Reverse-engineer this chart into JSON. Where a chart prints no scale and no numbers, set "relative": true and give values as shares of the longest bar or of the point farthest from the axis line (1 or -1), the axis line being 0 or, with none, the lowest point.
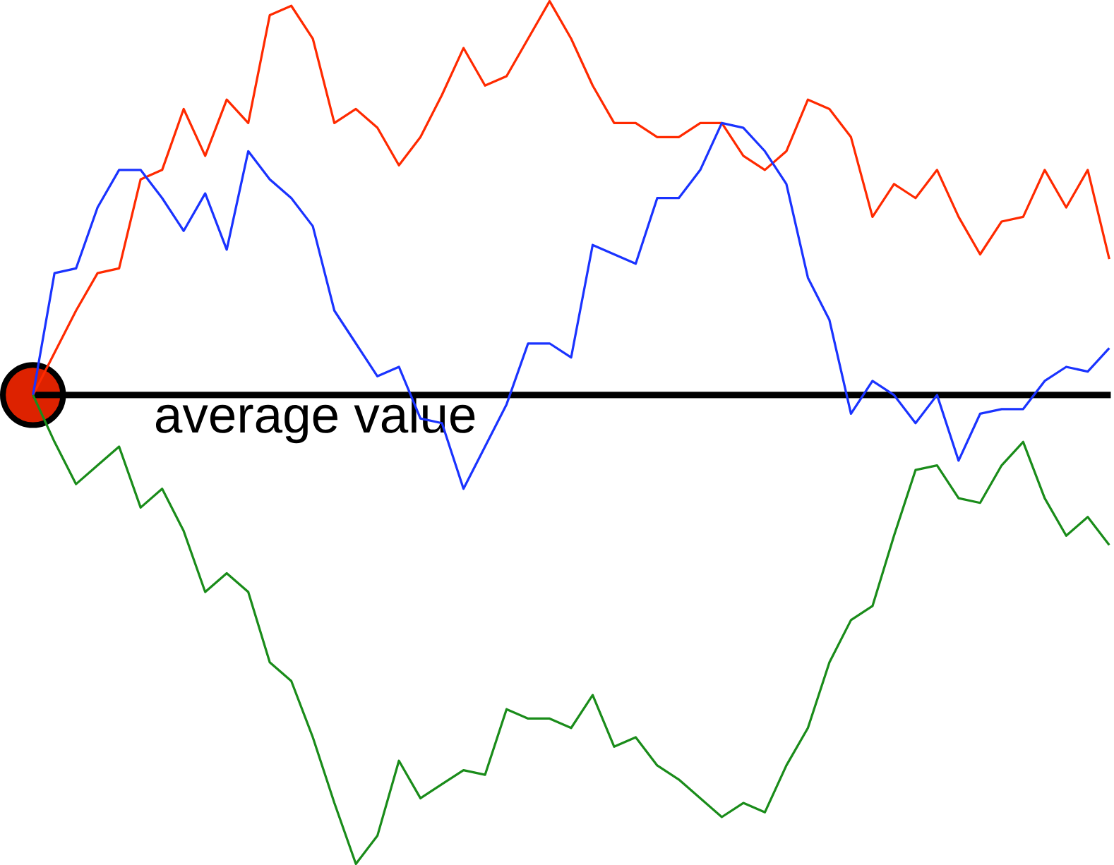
{
  "chart_data": {
    "type": "line",
    "relative": true,
    "categories": [
      null,
      null,
      null,
      null,
      null,
      null,
      null,
      null,
      null,
      null,
      null,
      null,
      null,
      null,
      null,
      null,
      null,
      null,
      null,
      null,
      null,
      null,
      null,
      null,
      null,
      null,
      null,
      null,
      null,
      null,
      null,
      null,
      null,
      null,
      null,
      null,
      null,
      null,
      null,
      null,
      null,
      null,
      null,
      null,
      null,
      null,
      null,
      null,
      null,
      null,
      null
    ],
    "series": [
      {
        "color": "#ff2a00",
        "values": [
          0,
          0.09,
          0.18,
          0.26,
          0.27,
          0.46,
          0.48,
          0.61,
          0.51,
          0.63,
          0.58,
          0.81,
          0.83,
          0.76,
          0.58,
          0.61,
          0.57,
          0.49,
          0.55,
          0.64,
          0.74,
          0.66,
          0.68,
          0.76,
          0.84,
          0.76,
          0.66,
          0.58,
          0.58,
          0.55,
          0.55,
          0.58,
          0.58,
          0.51,
          0.48,
          0.52,
          0.63,
          0.61,
          0.55,
          0.38,
          0.45,
          0.42,
          0.48,
          0.38,
          0.3,
          0.37,
          0.38,
          0.48,
          0.4,
          0.48,
          0.29
        ]
      },
      {
        "color": "#1a33ff",
        "values": [
          0,
          0.26,
          0.27,
          0.4,
          0.48,
          0.48,
          0.42,
          0.35,
          0.43,
          0.31,
          0.52,
          0.46,
          0.42,
          0.36,
          0.18,
          0.11,
          0.04,
          0.06,
          -0.05,
          -0.06,
          -0.2,
          -0.11,
          -0.02,
          0.11,
          0.11,
          0.08,
          0.32,
          0.3,
          0.28,
          0.42,
          0.42,
          0.48,
          0.58,
          0.57,
          0.52,
          0.45,
          0.25,
          0.16,
          -0.04,
          0.03,
          0,
          -0.06,
          0,
          -0.14,
          -0.04,
          -0.03,
          -0.03,
          0.03,
          0.06,
          0.05,
          0.1
        ]
      },
      {
        "color": "#1a8c1a",
        "values": [
          0,
          -0.1,
          -0.19,
          -0.15,
          -0.11,
          -0.24,
          -0.2,
          -0.29,
          -0.42,
          -0.38,
          -0.42,
          -0.57,
          -0.61,
          -0.73,
          -0.87,
          -1,
          -0.94,
          -0.78,
          -0.86,
          -0.83,
          -0.8,
          -0.81,
          -0.67,
          -0.69,
          -0.69,
          -0.71,
          -0.64,
          -0.75,
          -0.73,
          -0.79,
          -0.82,
          -0.86,
          -0.9,
          -0.87,
          -0.89,
          -0.79,
          -0.71,
          -0.57,
          -0.48,
          -0.45,
          -0.3,
          -0.16,
          -0.15,
          -0.22,
          -0.23,
          -0.15,
          -0.1,
          -0.22,
          -0.3,
          -0.26,
          -0.32
        ]
      }
    ],
    "ref_lines": [
      {
        "axis": "y",
        "value": 0,
        "label": "average value",
        "color": "#000000"
      }
    ],
    "marker": "none",
    "line_style": "solid"
  }
}
